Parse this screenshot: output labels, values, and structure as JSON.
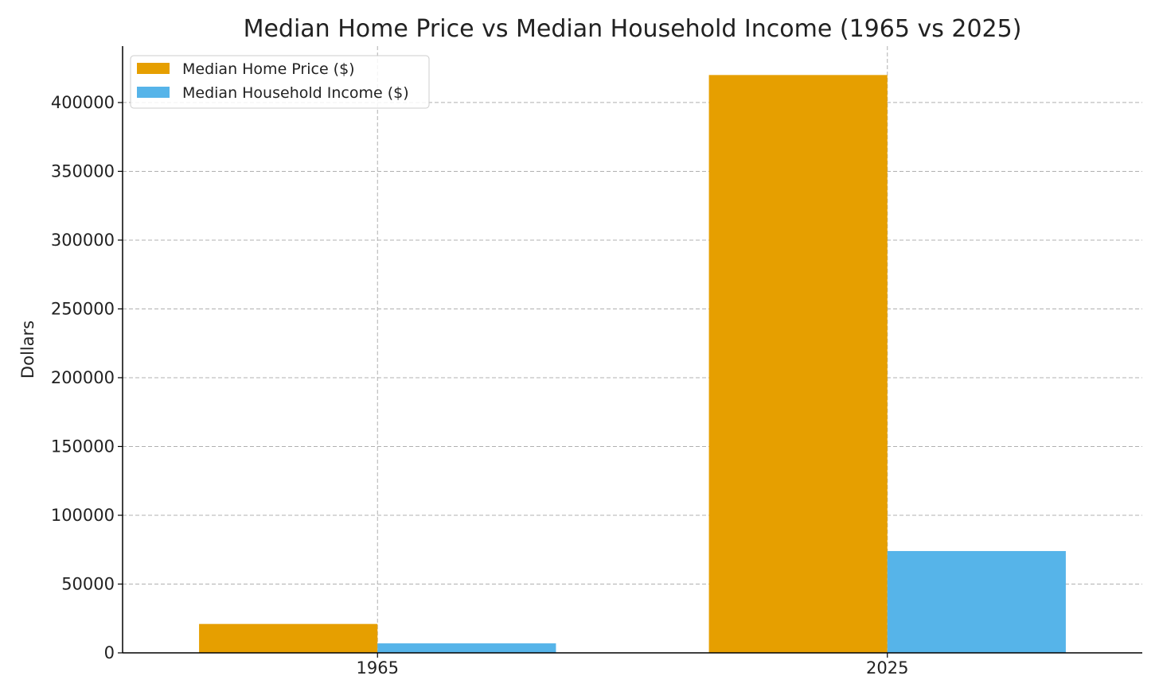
{
  "chart_data": {
    "type": "bar",
    "title": "Median Home Price vs Median Household Income (1965 vs 2025)",
    "xlabel": "",
    "ylabel": "Dollars",
    "categories": [
      "1965",
      "2025"
    ],
    "series": [
      {
        "name": "Median Home Price ($)",
        "values": [
          21000,
          420000
        ],
        "color": "#E69F00"
      },
      {
        "name": "Median Household Income ($)",
        "values": [
          6900,
          74000
        ],
        "color": "#56B4E9"
      }
    ],
    "ylim": [
      0,
      441000
    ],
    "yticks": [
      0,
      50000,
      100000,
      150000,
      200000,
      250000,
      300000,
      350000,
      400000
    ],
    "ytick_labels": [
      "0",
      "50000",
      "100000",
      "150000",
      "200000",
      "250000",
      "300000",
      "350000",
      "400000"
    ],
    "grid": true,
    "legend": "upper-left"
  }
}
